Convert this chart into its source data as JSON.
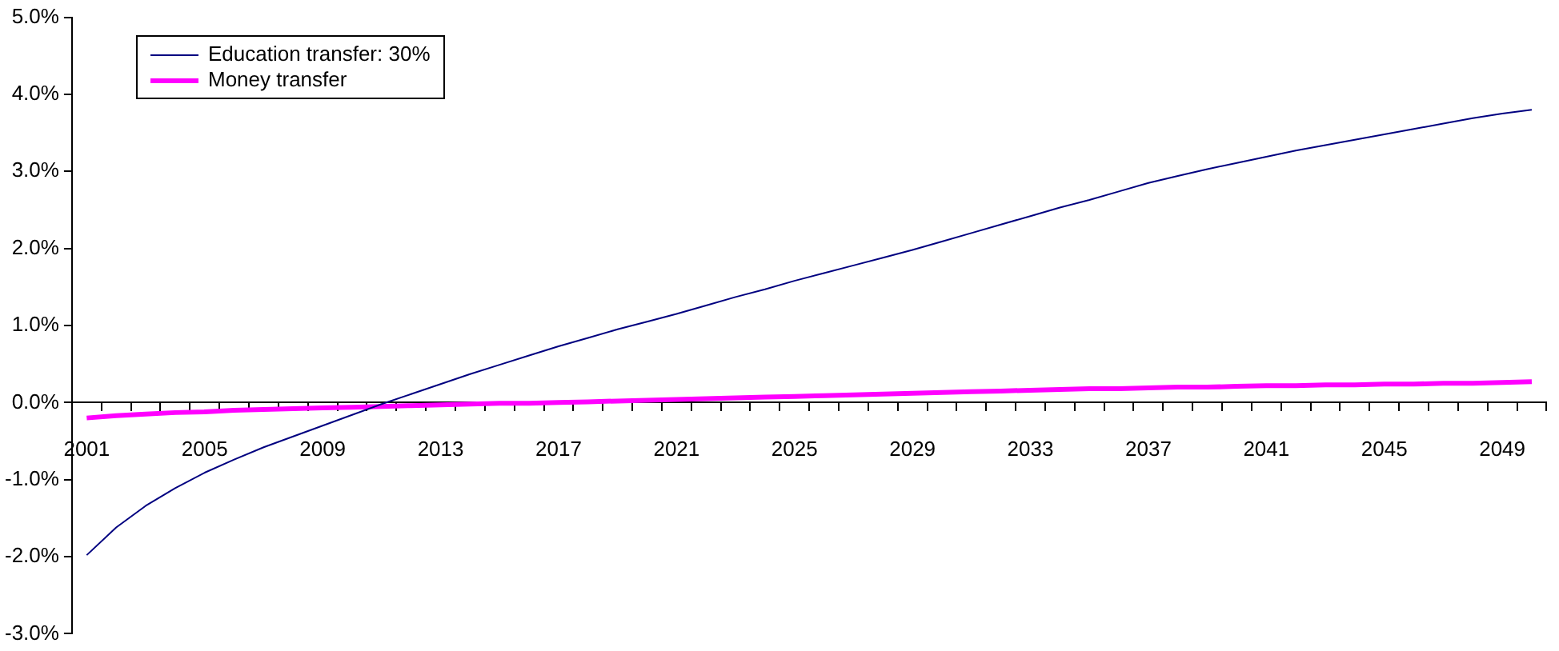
{
  "chart_data": {
    "type": "line",
    "categories": [
      "2001",
      null,
      null,
      null,
      "2005",
      null,
      null,
      null,
      "2009",
      null,
      null,
      null,
      "2013",
      null,
      null,
      null,
      "2017",
      null,
      null,
      null,
      "2021",
      null,
      null,
      null,
      "2025",
      null,
      null,
      null,
      "2029",
      null,
      null,
      null,
      "2033",
      null,
      null,
      null,
      "2037",
      null,
      null,
      null,
      "2041",
      null,
      null,
      null,
      "2045",
      null,
      null,
      null,
      "2049",
      null
    ],
    "series": [
      {
        "name": "Education transfer: 30%",
        "color": "#000080",
        "values": [
          -1.98,
          -1.62,
          -1.34,
          -1.11,
          -0.91,
          -0.74,
          -0.58,
          -0.44,
          -0.3,
          -0.16,
          -0.02,
          0.11,
          0.24,
          0.37,
          0.49,
          0.61,
          0.73,
          0.84,
          0.95,
          1.05,
          1.15,
          1.26,
          1.37,
          1.47,
          1.58,
          1.68,
          1.78,
          1.88,
          1.98,
          2.09,
          2.2,
          2.31,
          2.42,
          2.53,
          2.63,
          2.74,
          2.85,
          2.94,
          3.03,
          3.11,
          3.19,
          3.27,
          3.34,
          3.41,
          3.48,
          3.55,
          3.62,
          3.69,
          3.75,
          3.8
        ]
      },
      {
        "name": "Money transfer",
        "color": "#ff00ff",
        "values": [
          -0.2,
          -0.17,
          -0.15,
          -0.13,
          -0.12,
          -0.1,
          -0.09,
          -0.08,
          -0.07,
          -0.06,
          -0.05,
          -0.04,
          -0.03,
          -0.02,
          -0.01,
          -0.01,
          0.0,
          0.01,
          0.02,
          0.03,
          0.04,
          0.05,
          0.06,
          0.07,
          0.08,
          0.09,
          0.1,
          0.11,
          0.12,
          0.13,
          0.14,
          0.15,
          0.16,
          0.17,
          0.18,
          0.18,
          0.19,
          0.2,
          0.2,
          0.21,
          0.22,
          0.22,
          0.23,
          0.23,
          0.24,
          0.24,
          0.25,
          0.25,
          0.26,
          0.27
        ]
      }
    ],
    "ylim": [
      -3,
      5
    ],
    "yticks": [
      {
        "value": -3,
        "label": "-3.0%"
      },
      {
        "value": -2,
        "label": "-2.0%"
      },
      {
        "value": -1,
        "label": "-1.0%"
      },
      {
        "value": 0,
        "label": "0.0%"
      },
      {
        "value": 1,
        "label": "1.0%"
      },
      {
        "value": 2,
        "label": "2.0%"
      },
      {
        "value": 3,
        "label": "3.0%"
      },
      {
        "value": 4,
        "label": "4.0%"
      },
      {
        "value": 5,
        "label": "5.0%"
      }
    ],
    "grid": false,
    "legend": "top left",
    "marker": "none",
    "line_style": "solid"
  }
}
